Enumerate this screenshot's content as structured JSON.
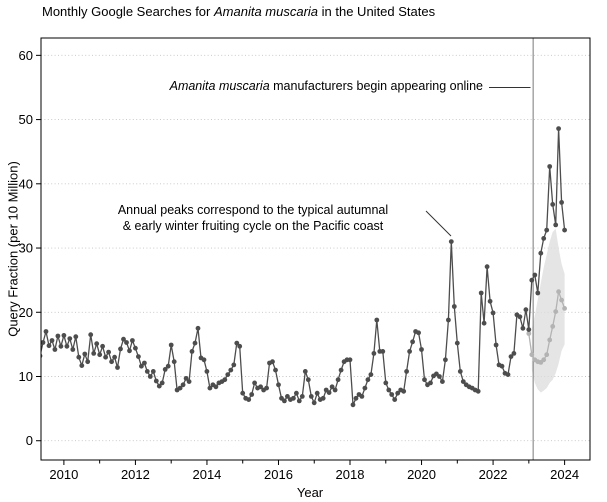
{
  "figure": {
    "title": {
      "prefix": "Monthly Google Searches for ",
      "species": "Amanita muscaria",
      "suffix": " in the United States"
    },
    "y_axis_label": "Query Fraction (per 10 Million)",
    "x_axis_label": "Year",
    "annotations": {
      "manufacturers": {
        "species": "Amanita muscaria",
        "rest": " manufacturers begin appearing online"
      },
      "peaks": {
        "line1": "Annual peaks correspond to the typical autumnal",
        "line2": "& early winter fruiting cycle on the Pacific coast"
      }
    }
  },
  "chart_data": {
    "type": "line",
    "title": "Monthly Google Searches for Amanita muscaria in the United States",
    "xlabel": "Year",
    "ylabel": "Query Fraction (per 10 Million)",
    "xlim": [
      2009.36,
      2024.71
    ],
    "ylim": [
      -3,
      62.7
    ],
    "xticks": [
      2010,
      2012,
      2014,
      2016,
      2018,
      2020,
      2022,
      2024
    ],
    "xminorticks": [
      2011,
      2013,
      2015,
      2017,
      2019,
      2021,
      2023
    ],
    "yticks": [
      0,
      10,
      20,
      30,
      40,
      50,
      60
    ],
    "grid": "horizontal-dotted",
    "grid_color": "#c3c3c3",
    "event_line": {
      "x": 2023.12,
      "color": "#7a7a7a"
    },
    "series": [
      {
        "name": "observed_monthly_searches",
        "color": "#4d4d4d",
        "start_year": 2009.3333,
        "interval_years": 0.083333,
        "values": [
          13.2,
          15.3,
          17.0,
          14.8,
          15.6,
          14.2,
          16.3,
          14.7,
          16.4,
          14.7,
          15.9,
          14.2,
          16.2,
          13.0,
          11.7,
          13.5,
          12.3,
          16.5,
          13.6,
          15.1,
          13.4,
          14.7,
          13.0,
          13.8,
          12.3,
          13.0,
          11.4,
          14.3,
          15.8,
          15.3,
          14.0,
          15.6,
          14.4,
          13.1,
          11.6,
          12.1,
          10.8,
          10.0,
          10.8,
          9.3,
          8.5,
          9.0,
          11.1,
          11.6,
          14.9,
          12.3,
          7.9,
          8.2,
          8.7,
          9.7,
          9.2,
          13.9,
          15.2,
          17.5,
          12.9,
          12.6,
          10.8,
          8.2,
          8.7,
          8.4,
          9.0,
          9.2,
          9.5,
          10.3,
          11.0,
          11.8,
          15.2,
          14.7,
          7.4,
          6.6,
          6.4,
          7.2,
          9.0,
          8.2,
          8.4,
          7.9,
          8.2,
          12.1,
          12.3,
          11.0,
          8.7,
          6.6,
          6.2,
          6.9,
          6.4,
          6.6,
          7.4,
          6.2,
          6.9,
          10.8,
          9.5,
          6.9,
          5.9,
          7.4,
          6.4,
          6.6,
          7.9,
          7.5,
          8.4,
          7.9,
          9.5,
          11.0,
          12.3,
          12.6,
          12.6,
          5.6,
          6.6,
          7.2,
          6.9,
          8.2,
          9.5,
          10.3,
          13.6,
          18.8,
          13.9,
          13.9,
          9.0,
          7.9,
          7.2,
          6.4,
          7.4,
          7.9,
          7.7,
          10.8,
          13.9,
          15.4,
          17.0,
          16.8,
          14.2,
          9.5,
          8.7,
          9.0,
          10.1,
          10.4,
          10.0,
          9.2,
          12.6,
          18.8,
          31.0,
          20.9,
          15.2,
          10.8,
          9.2,
          8.7,
          8.4,
          8.2,
          7.9,
          7.7,
          23.0,
          18.3,
          27.1,
          21.7,
          19.9,
          14.9,
          11.8,
          11.6,
          10.5,
          10.3,
          13.1,
          13.6,
          19.6,
          19.3,
          17.5,
          20.4,
          17.3,
          25.0,
          25.8,
          23.0,
          29.2,
          31.5,
          32.8,
          42.7,
          36.8,
          33.6,
          48.6,
          37.1,
          32.8
        ]
      },
      {
        "name": "counterfactual_seasonal_baseline",
        "color": "#b3b3b3",
        "start_year": 2023.0,
        "interval_years": 0.083333,
        "values": [
          16.7,
          13.4,
          12.6,
          12.3,
          12.2,
          12.6,
          13.4,
          15.7,
          17.8,
          20.1,
          23.2,
          21.9,
          20.6
        ]
      }
    ],
    "uncertainty_band": {
      "for_series": "counterfactual_seasonal_baseline",
      "color": "#dcdcdc",
      "start_year": 2023.0833,
      "interval_years": 0.083333,
      "upper": [
        17.5,
        19.5,
        22.0,
        24.5,
        27.0,
        29.0,
        31.0,
        32.5,
        33.0,
        30.0,
        27.5,
        26.0
      ],
      "lower": [
        11.0,
        9.0,
        8.0,
        7.5,
        7.8,
        8.2,
        9.0,
        9.5,
        10.5,
        12.0,
        14.0,
        15.0
      ]
    }
  }
}
